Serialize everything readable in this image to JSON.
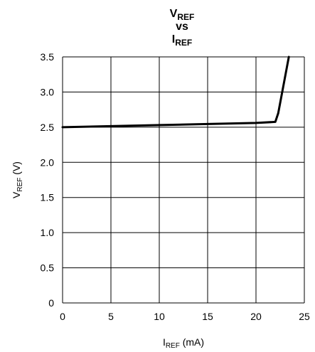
{
  "chart_data": {
    "type": "line",
    "title": {
      "line1_main": "V",
      "line1_sub": "REF",
      "line2": "vs",
      "line3_main": "I",
      "line3_sub": "REF"
    },
    "xlabel": {
      "main": "I",
      "sub": "REF",
      "rest": " (mA)"
    },
    "ylabel": {
      "main": "V",
      "sub": "REF",
      "rest": " (V)"
    },
    "xlim": [
      0,
      25
    ],
    "ylim": [
      0,
      3.5
    ],
    "x_ticks": [
      0,
      5,
      10,
      15,
      20,
      25
    ],
    "x_tick_labels": [
      "0",
      "5",
      "10",
      "15",
      "20",
      "25"
    ],
    "y_ticks": [
      0,
      0.5,
      1.0,
      1.5,
      2.0,
      2.5,
      3.0,
      3.5
    ],
    "y_tick_labels": [
      "0",
      "0.5",
      "1.0",
      "1.5",
      "2.0",
      "2.5",
      "3.0",
      "3.5"
    ],
    "grid": true,
    "series": [
      {
        "color": "#000000",
        "points": [
          [
            0,
            2.5
          ],
          [
            5,
            2.515
          ],
          [
            10,
            2.53
          ],
          [
            15,
            2.545
          ],
          [
            20,
            2.56
          ],
          [
            22,
            2.575
          ],
          [
            22.3,
            2.7
          ],
          [
            23.4,
            3.5
          ]
        ]
      }
    ]
  }
}
